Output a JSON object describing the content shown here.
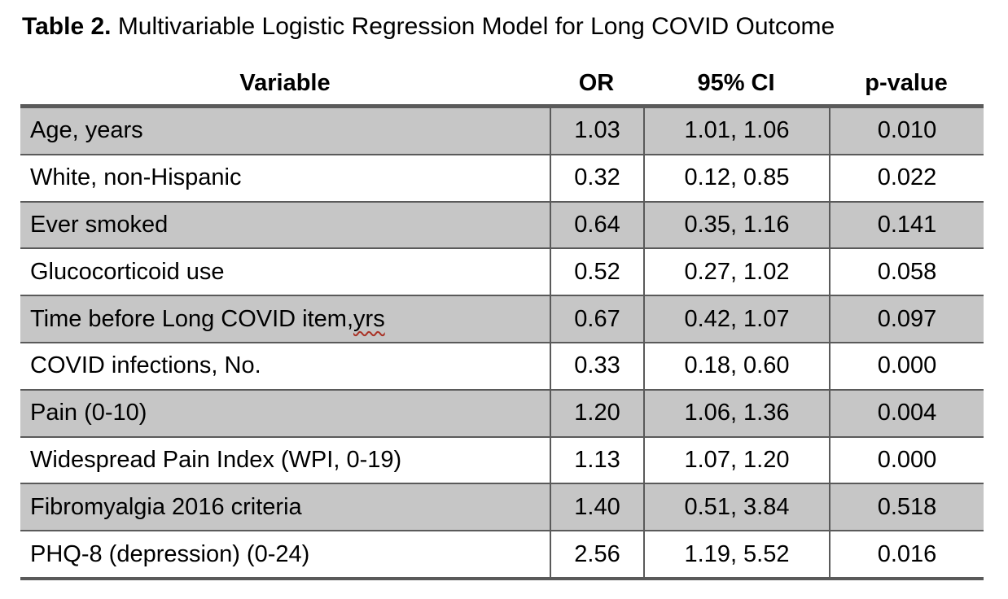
{
  "caption": {
    "label": "Table 2.",
    "text": " Multivariable Logistic Regression Model for Long COVID Outcome"
  },
  "table": {
    "headers": [
      "Variable",
      "OR",
      "95% CI",
      "p-value"
    ],
    "rows": [
      {
        "variable": "Age, years",
        "or": "1.03",
        "ci": "1.01, 1.06",
        "p": "0.010"
      },
      {
        "variable": "White, non-Hispanic",
        "or": "0.32",
        "ci": "0.12, 0.85",
        "p": "0.022"
      },
      {
        "variable": "Ever smoked",
        "or": "0.64",
        "ci": "0.35, 1.16",
        "p": "0.141"
      },
      {
        "variable": "Glucocorticoid use",
        "or": "0.52",
        "ci": "0.27, 1.02",
        "p": "0.058"
      },
      {
        "variable": "Time before Long COVID item, ",
        "squiggle": "yrs",
        "or": "0.67",
        "ci": "0.42, 1.07",
        "p": "0.097"
      },
      {
        "variable": "COVID infections, No.",
        "or": "0.33",
        "ci": "0.18, 0.60",
        "p": "0.000"
      },
      {
        "variable": "Pain (0-10)",
        "or": "1.20",
        "ci": "1.06, 1.36",
        "p": "0.004"
      },
      {
        "variable": "Widespread Pain Index (WPI, 0-19)",
        "or": "1.13",
        "ci": "1.07, 1.20",
        "p": "0.000"
      },
      {
        "variable": "Fibromyalgia 2016 criteria",
        "or": "1.40",
        "ci": "0.51, 3.84",
        "p": "0.518"
      },
      {
        "variable": "PHQ-8 (depression) (0-24)",
        "or": "2.56",
        "ci": "1.19, 5.52",
        "p": "0.016"
      }
    ]
  },
  "colors": {
    "row_shade": "#c6c6c6",
    "border": "#5a5a5a",
    "spellcheck_underline": "#a93226",
    "text": "#000000",
    "background": "#ffffff"
  }
}
